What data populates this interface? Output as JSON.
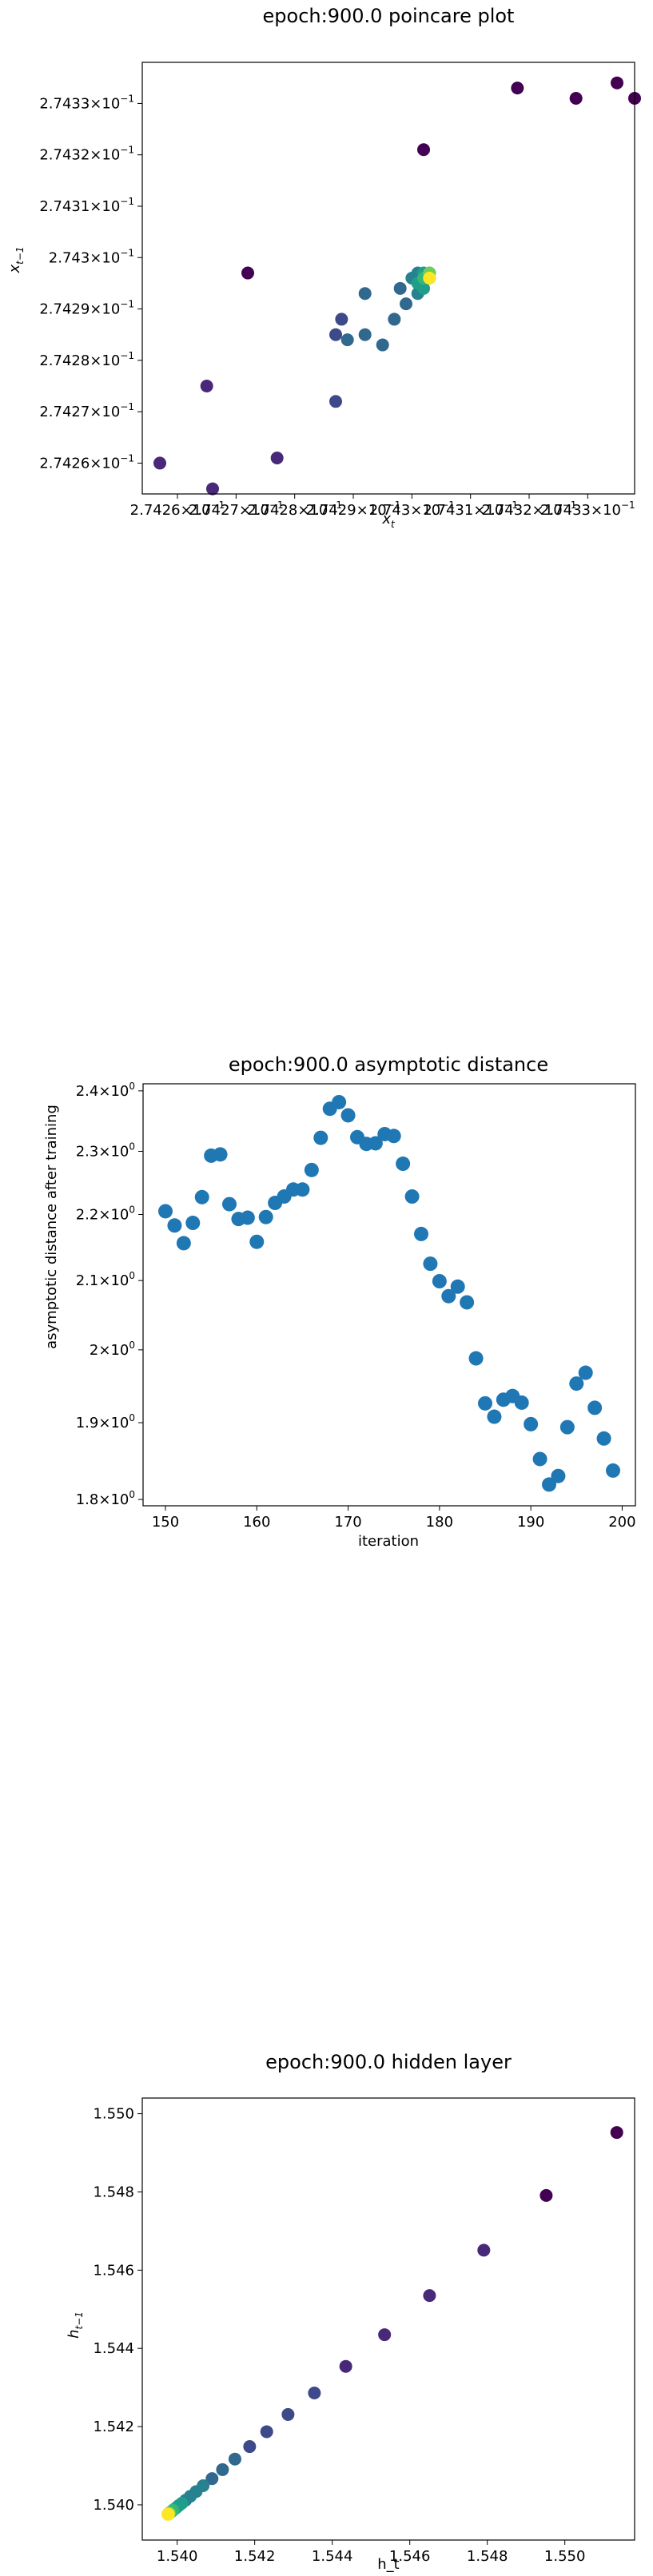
{
  "chart_data": [
    {
      "type": "scatter",
      "title": "epoch:900.0 poincare plot",
      "xlabel_base": "x",
      "xlabel_sub": "t",
      "ylabel_base": "x",
      "ylabel_sub": "t−1",
      "xscale": "log",
      "yscale": "log",
      "xlim": [
        0.274254,
        0.274338
      ],
      "ylim": [
        0.274254,
        0.274338
      ],
      "xticks": [
        0.27426,
        0.27427,
        0.27428,
        0.27429,
        0.2743,
        0.27431,
        0.27432,
        0.27433
      ],
      "xtick_labels": [
        {
          "mant": "2.7426",
          "exp": "−1"
        },
        {
          "mant": "2.7427",
          "exp": "−1"
        },
        {
          "mant": "2.7428",
          "exp": "−1"
        },
        {
          "mant": "2.7429",
          "exp": "−1"
        },
        {
          "mant": "2.743",
          "exp": "−1"
        },
        {
          "mant": "2.7431",
          "exp": "−1"
        },
        {
          "mant": "2.7432",
          "exp": "−1"
        },
        {
          "mant": "2.7433",
          "exp": "−1"
        }
      ],
      "yticks": [
        0.27426,
        0.27427,
        0.27428,
        0.27429,
        0.2743,
        0.27431,
        0.27432,
        0.27433
      ],
      "ytick_labels": [
        {
          "mant": "2.7426",
          "exp": "−1"
        },
        {
          "mant": "2.7427",
          "exp": "−1"
        },
        {
          "mant": "2.7428",
          "exp": "−1"
        },
        {
          "mant": "2.7429",
          "exp": "−1"
        },
        {
          "mant": "2.743",
          "exp": "−1"
        },
        {
          "mant": "2.7431",
          "exp": "−1"
        },
        {
          "mant": "2.7432",
          "exp": "−1"
        },
        {
          "mant": "2.7433",
          "exp": "−1"
        }
      ],
      "colormap": "viridis",
      "points": [
        {
          "x": 0.274335,
          "y": 0.274334,
          "c": 0.0
        },
        {
          "x": 0.274338,
          "y": 0.274331,
          "c": 0.0
        },
        {
          "x": 0.274328,
          "y": 0.274331,
          "c": 0.0
        },
        {
          "x": 0.274318,
          "y": 0.274333,
          "c": 0.02
        },
        {
          "x": 0.274302,
          "y": 0.274321,
          "c": 0.03
        },
        {
          "x": 0.274272,
          "y": 0.274297,
          "c": 0.05
        },
        {
          "x": 0.274257,
          "y": 0.27426,
          "c": 0.1
        },
        {
          "x": 0.274266,
          "y": 0.274255,
          "c": 0.12
        },
        {
          "x": 0.274265,
          "y": 0.274275,
          "c": 0.14
        },
        {
          "x": 0.274277,
          "y": 0.274261,
          "c": 0.16
        },
        {
          "x": 0.274287,
          "y": 0.274272,
          "c": 0.2
        },
        {
          "x": 0.274287,
          "y": 0.274285,
          "c": 0.24
        },
        {
          "x": 0.274288,
          "y": 0.274288,
          "c": 0.26
        },
        {
          "x": 0.274289,
          "y": 0.274284,
          "c": 0.28
        },
        {
          "x": 0.274292,
          "y": 0.274285,
          "c": 0.3
        },
        {
          "x": 0.274292,
          "y": 0.274293,
          "c": 0.31
        },
        {
          "x": 0.274295,
          "y": 0.274283,
          "c": 0.3
        },
        {
          "x": 0.274297,
          "y": 0.274288,
          "c": 0.33
        },
        {
          "x": 0.274298,
          "y": 0.274294,
          "c": 0.36
        },
        {
          "x": 0.274299,
          "y": 0.274291,
          "c": 0.38
        },
        {
          "x": 0.274301,
          "y": 0.274293,
          "c": 0.4
        },
        {
          "x": 0.2743,
          "y": 0.274296,
          "c": 0.44
        },
        {
          "x": 0.274301,
          "y": 0.274297,
          "c": 0.48
        },
        {
          "x": 0.274302,
          "y": 0.274294,
          "c": 0.52
        },
        {
          "x": 0.274301,
          "y": 0.274295,
          "c": 0.56
        },
        {
          "x": 0.274302,
          "y": 0.274297,
          "c": 0.6
        },
        {
          "x": 0.274302,
          "y": 0.274296,
          "c": 0.64
        },
        {
          "x": 0.274303,
          "y": 0.274297,
          "c": 0.7
        },
        {
          "x": 0.274303,
          "y": 0.274297,
          "c": 0.76
        },
        {
          "x": 0.274303,
          "y": 0.274296,
          "c": 0.82
        },
        {
          "x": 0.274303,
          "y": 0.274296,
          "c": 0.9
        },
        {
          "x": 0.274303,
          "y": 0.274296,
          "c": 1.0
        }
      ]
    },
    {
      "type": "scatter",
      "title": "epoch:900.0 asymptotic distance",
      "xlabel": "iteration",
      "ylabel": "asymptotic distance after training",
      "xscale": "linear",
      "yscale": "log",
      "xlim": [
        147.55,
        201.45
      ],
      "ylim": [
        1.792,
        2.412
      ],
      "xticks": [
        150,
        160,
        170,
        180,
        190,
        200
      ],
      "xtick_labels": [
        "150",
        "160",
        "170",
        "180",
        "190",
        "200"
      ],
      "yticks": [
        1.8,
        1.9,
        2.0,
        2.1,
        2.2,
        2.3,
        2.4
      ],
      "ytick_labels": [
        {
          "mant": "1.8",
          "exp": "0"
        },
        {
          "mant": "1.9",
          "exp": "0"
        },
        {
          "mant": "2",
          "exp": "0"
        },
        {
          "mant": "2.1",
          "exp": "0"
        },
        {
          "mant": "2.2",
          "exp": "0"
        },
        {
          "mant": "2.3",
          "exp": "0"
        },
        {
          "mant": "2.4",
          "exp": "0"
        }
      ],
      "color": "#1f77b4",
      "x": [
        150,
        151,
        152,
        153,
        154,
        155,
        156,
        157,
        158,
        159,
        160,
        161,
        162,
        163,
        164,
        165,
        166,
        167,
        168,
        169,
        170,
        171,
        172,
        173,
        174,
        175,
        176,
        177,
        178,
        179,
        180,
        181,
        182,
        183,
        184,
        185,
        186,
        187,
        188,
        189,
        190,
        191,
        192,
        193,
        194,
        195,
        196,
        197,
        198,
        199
      ],
      "y": [
        2.205,
        2.183,
        2.156,
        2.187,
        2.227,
        2.293,
        2.295,
        2.216,
        2.193,
        2.195,
        2.158,
        2.196,
        2.218,
        2.228,
        2.239,
        2.239,
        2.27,
        2.322,
        2.37,
        2.381,
        2.359,
        2.323,
        2.312,
        2.313,
        2.328,
        2.325,
        2.28,
        2.228,
        2.17,
        2.125,
        2.099,
        2.077,
        2.091,
        2.068,
        1.988,
        1.926,
        1.908,
        1.931,
        1.936,
        1.927,
        1.898,
        1.852,
        1.819,
        1.83,
        1.894,
        1.953,
        1.968,
        1.92,
        1.879,
        1.837
      ]
    },
    {
      "type": "scatter",
      "title": "epoch:900.0 hidden layer",
      "xlabel": "h_t",
      "ylabel_base": "h",
      "ylabel_sub": "t−1",
      "xscale": "linear",
      "yscale": "linear",
      "xlim": [
        1.5391,
        1.5518
      ],
      "ylim": [
        1.5391,
        1.5504
      ],
      "xticks": [
        1.54,
        1.542,
        1.544,
        1.546,
        1.548,
        1.55
      ],
      "xtick_labels": [
        "1.540",
        "1.542",
        "1.544",
        "1.546",
        "1.548",
        "1.550"
      ],
      "yticks": [
        1.54,
        1.542,
        1.544,
        1.546,
        1.548,
        1.55
      ],
      "ytick_labels": [
        "1.540",
        "1.542",
        "1.544",
        "1.546",
        "1.548",
        "1.550"
      ],
      "colormap": "viridis",
      "points": [
        {
          "x": 1.55134,
          "y": 1.54952,
          "c": 0.0
        },
        {
          "x": 1.54952,
          "y": 1.54791,
          "c": 0.03
        },
        {
          "x": 1.54791,
          "y": 1.54651,
          "c": 0.06
        },
        {
          "x": 1.54651,
          "y": 1.54535,
          "c": 0.09
        },
        {
          "x": 1.54535,
          "y": 1.54435,
          "c": 0.12
        },
        {
          "x": 1.54435,
          "y": 1.54354,
          "c": 0.15
        },
        {
          "x": 1.54354,
          "y": 1.54286,
          "c": 0.18
        },
        {
          "x": 1.54286,
          "y": 1.54231,
          "c": 0.21
        },
        {
          "x": 1.54231,
          "y": 1.54187,
          "c": 0.24
        },
        {
          "x": 1.54187,
          "y": 1.54149,
          "c": 0.27
        },
        {
          "x": 1.54149,
          "y": 1.54117,
          "c": 0.3
        },
        {
          "x": 1.54117,
          "y": 1.5409,
          "c": 0.33
        },
        {
          "x": 1.5409,
          "y": 1.54067,
          "c": 0.36
        },
        {
          "x": 1.54067,
          "y": 1.54049,
          "c": 0.39
        },
        {
          "x": 1.54049,
          "y": 1.54034,
          "c": 0.42
        },
        {
          "x": 1.54034,
          "y": 1.54022,
          "c": 0.45
        },
        {
          "x": 1.54022,
          "y": 1.54012,
          "c": 0.48
        },
        {
          "x": 1.54012,
          "y": 1.54004,
          "c": 0.51
        },
        {
          "x": 1.54004,
          "y": 1.53998,
          "c": 0.54
        },
        {
          "x": 1.53998,
          "y": 1.53993,
          "c": 0.57
        },
        {
          "x": 1.53993,
          "y": 1.53989,
          "c": 0.6
        },
        {
          "x": 1.53989,
          "y": 1.53986,
          "c": 0.63
        },
        {
          "x": 1.53986,
          "y": 1.53983,
          "c": 0.66
        },
        {
          "x": 1.53983,
          "y": 1.53981,
          "c": 0.69
        },
        {
          "x": 1.53981,
          "y": 1.5398,
          "c": 0.72
        },
        {
          "x": 1.5398,
          "y": 1.53979,
          "c": 0.75
        },
        {
          "x": 1.53979,
          "y": 1.53978,
          "c": 0.8
        },
        {
          "x": 1.53978,
          "y": 1.53977,
          "c": 0.85
        },
        {
          "x": 1.53977,
          "y": 1.53977,
          "c": 0.9
        },
        {
          "x": 1.53977,
          "y": 1.53976,
          "c": 0.95
        },
        {
          "x": 1.53976,
          "y": 1.53976,
          "c": 1.0
        }
      ]
    }
  ]
}
